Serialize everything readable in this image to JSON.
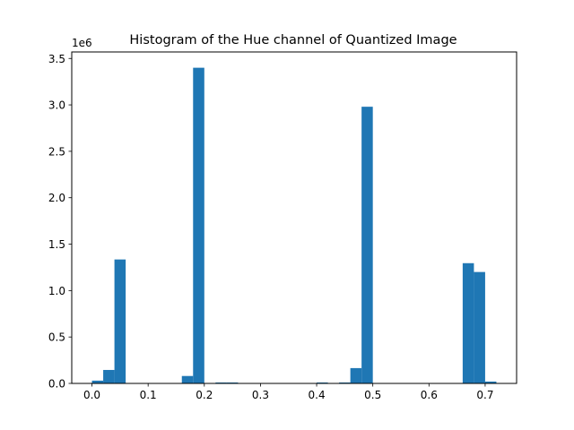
{
  "chart_data": {
    "type": "bar",
    "title": "Histogram of the Hue channel of Quantized Image",
    "xlabel": "",
    "ylabel": "",
    "y_multiplier_label": "1e6",
    "xlim": [
      -0.036,
      0.756
    ],
    "ylim": [
      0,
      3570000
    ],
    "grid": false,
    "bar_color": "#1f77b4",
    "bin_width": 0.02,
    "bins": [
      {
        "x0": 0.0,
        "value": 30000
      },
      {
        "x0": 0.02,
        "value": 145000
      },
      {
        "x0": 0.04,
        "value": 1335000
      },
      {
        "x0": 0.06,
        "value": 0
      },
      {
        "x0": 0.08,
        "value": 0
      },
      {
        "x0": 0.1,
        "value": 0
      },
      {
        "x0": 0.12,
        "value": 0
      },
      {
        "x0": 0.14,
        "value": 0
      },
      {
        "x0": 0.16,
        "value": 80000
      },
      {
        "x0": 0.18,
        "value": 3400000
      },
      {
        "x0": 0.2,
        "value": 0
      },
      {
        "x0": 0.22,
        "value": 10000
      },
      {
        "x0": 0.24,
        "value": 10000
      },
      {
        "x0": 0.26,
        "value": 0
      },
      {
        "x0": 0.28,
        "value": 0
      },
      {
        "x0": 0.3,
        "value": 0
      },
      {
        "x0": 0.32,
        "value": 0
      },
      {
        "x0": 0.34,
        "value": 0
      },
      {
        "x0": 0.36,
        "value": 0
      },
      {
        "x0": 0.38,
        "value": 0
      },
      {
        "x0": 0.4,
        "value": 10000
      },
      {
        "x0": 0.42,
        "value": 0
      },
      {
        "x0": 0.44,
        "value": 10000
      },
      {
        "x0": 0.46,
        "value": 165000
      },
      {
        "x0": 0.48,
        "value": 2980000
      },
      {
        "x0": 0.5,
        "value": 0
      },
      {
        "x0": 0.52,
        "value": 0
      },
      {
        "x0": 0.54,
        "value": 0
      },
      {
        "x0": 0.56,
        "value": 0
      },
      {
        "x0": 0.58,
        "value": 0
      },
      {
        "x0": 0.6,
        "value": 0
      },
      {
        "x0": 0.62,
        "value": 0
      },
      {
        "x0": 0.64,
        "value": 0
      },
      {
        "x0": 0.66,
        "value": 1295000
      },
      {
        "x0": 0.68,
        "value": 1200000
      },
      {
        "x0": 0.7,
        "value": 20000
      }
    ],
    "x_ticks": [
      {
        "value": 0.0,
        "label": "0.0"
      },
      {
        "value": 0.1,
        "label": "0.1"
      },
      {
        "value": 0.2,
        "label": "0.2"
      },
      {
        "value": 0.3,
        "label": "0.3"
      },
      {
        "value": 0.4,
        "label": "0.4"
      },
      {
        "value": 0.5,
        "label": "0.5"
      },
      {
        "value": 0.6,
        "label": "0.6"
      },
      {
        "value": 0.7,
        "label": "0.7"
      }
    ],
    "y_ticks": [
      {
        "value": 0,
        "label": "0.0"
      },
      {
        "value": 500000,
        "label": "0.5"
      },
      {
        "value": 1000000,
        "label": "1.0"
      },
      {
        "value": 1500000,
        "label": "1.5"
      },
      {
        "value": 2000000,
        "label": "2.0"
      },
      {
        "value": 2500000,
        "label": "2.5"
      },
      {
        "value": 3000000,
        "label": "3.0"
      },
      {
        "value": 3500000,
        "label": "3.5"
      }
    ]
  }
}
